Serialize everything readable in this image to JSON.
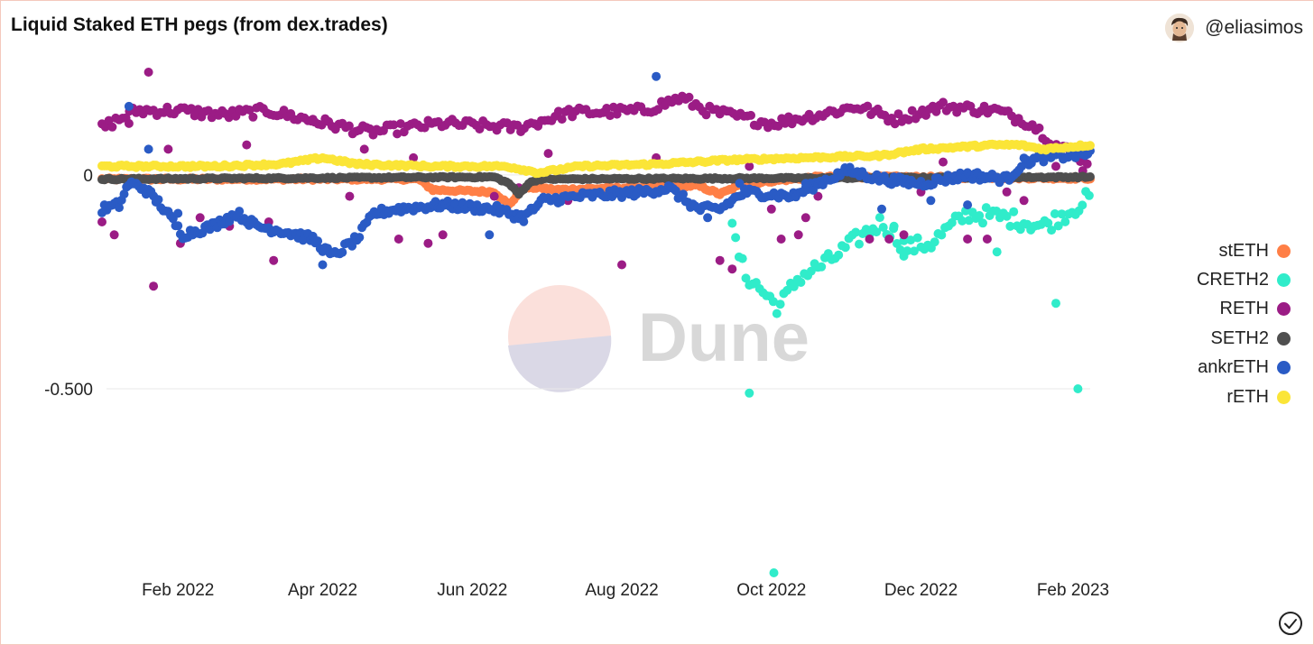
{
  "header": {
    "title": "Liquid Staked ETH pegs (from dex.trades)",
    "author": "@eliasimos"
  },
  "watermark": {
    "text": "Dune"
  },
  "chart_data": {
    "type": "scatter",
    "title": "Liquid Staked ETH pegs (from dex.trades)",
    "xlabel": "",
    "ylabel": "",
    "x_range": [
      "2022-01-01",
      "2023-02-08"
    ],
    "ylim": [
      -0.93,
      0.24
    ],
    "y_ticks": [
      {
        "value": 0,
        "label": "0"
      },
      {
        "value": -0.5,
        "label": "-0.500"
      }
    ],
    "x_ticks": [
      {
        "value": "2022-02-01",
        "label": "Feb 2022"
      },
      {
        "value": "2022-04-01",
        "label": "Apr 2022"
      },
      {
        "value": "2022-06-01",
        "label": "Jun 2022"
      },
      {
        "value": "2022-08-01",
        "label": "Aug 2022"
      },
      {
        "value": "2022-10-01",
        "label": "Oct 2022"
      },
      {
        "value": "2022-12-01",
        "label": "Dec 2022"
      },
      {
        "value": "2023-02-01",
        "label": "Feb 2023"
      }
    ],
    "grid": "horizontal",
    "legend": "right",
    "series": [
      {
        "name": "stETH",
        "color": "#ff7f46",
        "anchors": [
          [
            "2022-01-01",
            -0.01
          ],
          [
            "2022-05-10",
            -0.01
          ],
          [
            "2022-05-16",
            -0.035
          ],
          [
            "2022-06-10",
            -0.04
          ],
          [
            "2022-06-16",
            -0.07
          ],
          [
            "2022-06-22",
            -0.03
          ],
          [
            "2022-06-28",
            -0.03
          ],
          [
            "2022-07-05",
            -0.035
          ],
          [
            "2022-09-01",
            -0.025
          ],
          [
            "2022-09-10",
            -0.045
          ],
          [
            "2022-09-20",
            -0.02
          ],
          [
            "2022-10-20",
            -0.005
          ],
          [
            "2022-11-20",
            -0.005
          ],
          [
            "2023-02-08",
            -0.008
          ]
        ],
        "outliers": []
      },
      {
        "name": "CRETH2",
        "color": "#30ecca",
        "anchors": [
          [
            "2022-09-15",
            -0.13
          ],
          [
            "2022-09-20",
            -0.23
          ],
          [
            "2022-09-27",
            -0.27
          ],
          [
            "2022-10-04",
            -0.31
          ],
          [
            "2022-10-12",
            -0.24
          ],
          [
            "2022-10-25",
            -0.2
          ],
          [
            "2022-11-05",
            -0.15
          ],
          [
            "2022-11-15",
            -0.11
          ],
          [
            "2022-11-25",
            -0.17
          ],
          [
            "2022-12-05",
            -0.16
          ],
          [
            "2022-12-20",
            -0.09
          ],
          [
            "2023-01-05",
            -0.1
          ],
          [
            "2023-01-20",
            -0.12
          ],
          [
            "2023-02-01",
            -0.08
          ],
          [
            "2023-02-08",
            -0.05
          ]
        ],
        "outliers": [
          [
            "2022-09-22",
            -0.51
          ],
          [
            "2022-10-02",
            -0.93
          ],
          [
            "2023-01-25",
            -0.3
          ],
          [
            "2023-02-03",
            -0.5
          ],
          [
            "2023-01-01",
            -0.18
          ],
          [
            "2022-11-24",
            -0.19
          ],
          [
            "2022-11-20",
            -0.12
          ]
        ]
      },
      {
        "name": "RETH",
        "color": "#9b1c85",
        "anchors": [
          [
            "2022-01-01",
            0.11
          ],
          [
            "2022-01-15",
            0.15
          ],
          [
            "2022-02-01",
            0.15
          ],
          [
            "2022-02-20",
            0.14
          ],
          [
            "2022-03-10",
            0.15
          ],
          [
            "2022-03-25",
            0.13
          ],
          [
            "2022-04-20",
            0.1
          ],
          [
            "2022-05-20",
            0.12
          ],
          [
            "2022-06-20",
            0.11
          ],
          [
            "2022-07-10",
            0.145
          ],
          [
            "2022-08-10",
            0.15
          ],
          [
            "2022-08-25",
            0.18
          ],
          [
            "2022-09-05",
            0.15
          ],
          [
            "2022-10-01",
            0.12
          ],
          [
            "2022-10-20",
            0.14
          ],
          [
            "2022-11-05",
            0.16
          ],
          [
            "2022-11-20",
            0.13
          ],
          [
            "2022-12-10",
            0.16
          ],
          [
            "2023-01-01",
            0.15
          ],
          [
            "2023-01-15",
            0.12
          ],
          [
            "2023-01-25",
            0.07
          ],
          [
            "2023-02-08",
            0.03
          ]
        ],
        "outliers": [
          [
            "2022-01-01",
            -0.11
          ],
          [
            "2022-01-06",
            -0.14
          ],
          [
            "2022-01-12",
            0.12
          ],
          [
            "2022-01-20",
            0.24
          ],
          [
            "2022-01-22",
            -0.26
          ],
          [
            "2022-01-28",
            0.06
          ],
          [
            "2022-02-02",
            -0.16
          ],
          [
            "2022-02-10",
            -0.1
          ],
          [
            "2022-02-22",
            -0.12
          ],
          [
            "2022-03-01",
            0.07
          ],
          [
            "2022-03-10",
            -0.11
          ],
          [
            "2022-03-12",
            -0.2
          ],
          [
            "2022-03-28",
            0.13
          ],
          [
            "2022-04-12",
            -0.05
          ],
          [
            "2022-04-18",
            0.06
          ],
          [
            "2022-05-02",
            -0.15
          ],
          [
            "2022-05-08",
            0.04
          ],
          [
            "2022-05-14",
            -0.16
          ],
          [
            "2022-05-20",
            -0.14
          ],
          [
            "2022-06-10",
            -0.05
          ],
          [
            "2022-06-20",
            -0.03
          ],
          [
            "2022-07-02",
            0.05
          ],
          [
            "2022-07-10",
            -0.06
          ],
          [
            "2022-08-01",
            -0.21
          ],
          [
            "2022-08-15",
            0.04
          ],
          [
            "2022-08-25",
            -0.05
          ],
          [
            "2022-09-10",
            -0.2
          ],
          [
            "2022-09-15",
            -0.22
          ],
          [
            "2022-09-22",
            0.02
          ],
          [
            "2022-10-01",
            -0.08
          ],
          [
            "2022-10-05",
            -0.15
          ],
          [
            "2022-10-12",
            -0.14
          ],
          [
            "2022-10-15",
            -0.1
          ],
          [
            "2022-10-20",
            -0.05
          ],
          [
            "2022-11-01",
            0.01
          ],
          [
            "2022-11-10",
            -0.15
          ],
          [
            "2022-11-18",
            -0.15
          ],
          [
            "2022-11-24",
            -0.14
          ],
          [
            "2022-12-01",
            -0.04
          ],
          [
            "2022-12-10",
            0.03
          ],
          [
            "2022-12-20",
            -0.15
          ],
          [
            "2022-12-28",
            -0.15
          ],
          [
            "2023-01-05",
            -0.04
          ],
          [
            "2023-01-12",
            -0.06
          ],
          [
            "2023-01-25",
            0.02
          ],
          [
            "2023-02-05",
            0.01
          ]
        ]
      },
      {
        "name": "SETH2",
        "color": "#4f4f4f",
        "anchors": [
          [
            "2022-01-01",
            -0.01
          ],
          [
            "2022-06-10",
            -0.005
          ],
          [
            "2022-06-16",
            -0.02
          ],
          [
            "2022-06-20",
            -0.045
          ],
          [
            "2022-06-24",
            -0.02
          ],
          [
            "2022-06-28",
            -0.01
          ],
          [
            "2023-02-08",
            -0.005
          ]
        ],
        "outliers": []
      },
      {
        "name": "ankrETH",
        "color": "#2a5bc5",
        "anchors": [
          [
            "2022-01-01",
            -0.08
          ],
          [
            "2022-01-08",
            -0.07
          ],
          [
            "2022-01-12",
            -0.02
          ],
          [
            "2022-01-18",
            -0.03
          ],
          [
            "2022-01-25",
            -0.07
          ],
          [
            "2022-02-03",
            -0.14
          ],
          [
            "2022-02-15",
            -0.12
          ],
          [
            "2022-02-25",
            -0.09
          ],
          [
            "2022-03-05",
            -0.12
          ],
          [
            "2022-03-15",
            -0.13
          ],
          [
            "2022-03-28",
            -0.15
          ],
          [
            "2022-04-05",
            -0.19
          ],
          [
            "2022-04-15",
            -0.15
          ],
          [
            "2022-04-22",
            -0.09
          ],
          [
            "2022-05-01",
            -0.08
          ],
          [
            "2022-05-20",
            -0.07
          ],
          [
            "2022-06-10",
            -0.08
          ],
          [
            "2022-06-22",
            -0.1
          ],
          [
            "2022-06-30",
            -0.06
          ],
          [
            "2022-07-15",
            -0.05
          ],
          [
            "2022-08-10",
            -0.04
          ],
          [
            "2022-08-20",
            -0.03
          ],
          [
            "2022-09-01",
            -0.08
          ],
          [
            "2022-09-10",
            -0.08
          ],
          [
            "2022-09-20",
            -0.04
          ],
          [
            "2022-10-10",
            -0.05
          ],
          [
            "2022-10-20",
            -0.02
          ],
          [
            "2022-11-01",
            0.01
          ],
          [
            "2022-11-15",
            -0.01
          ],
          [
            "2022-12-01",
            -0.02
          ],
          [
            "2022-12-20",
            0.0
          ],
          [
            "2023-01-05",
            -0.01
          ],
          [
            "2023-01-12",
            0.03
          ],
          [
            "2023-01-20",
            0.04
          ],
          [
            "2023-02-08",
            0.05
          ]
        ],
        "outliers": [
          [
            "2022-01-12",
            0.16
          ],
          [
            "2022-01-20",
            0.06
          ],
          [
            "2022-02-01",
            -0.09
          ],
          [
            "2022-04-01",
            -0.21
          ],
          [
            "2022-06-08",
            -0.14
          ],
          [
            "2022-08-15",
            0.23
          ],
          [
            "2022-09-05",
            -0.1
          ],
          [
            "2022-09-18",
            -0.02
          ],
          [
            "2022-10-15",
            -0.02
          ],
          [
            "2022-11-15",
            -0.08
          ],
          [
            "2022-12-05",
            -0.06
          ],
          [
            "2022-12-20",
            -0.07
          ]
        ]
      },
      {
        "name": "rETH",
        "color": "#fbe537",
        "anchors": [
          [
            "2022-01-01",
            0.02
          ],
          [
            "2022-02-15",
            0.02
          ],
          [
            "2022-03-15",
            0.025
          ],
          [
            "2022-04-01",
            0.04
          ],
          [
            "2022-04-15",
            0.025
          ],
          [
            "2022-05-15",
            0.02
          ],
          [
            "2022-06-15",
            0.02
          ],
          [
            "2022-06-28",
            0.005
          ],
          [
            "2022-07-15",
            0.02
          ],
          [
            "2022-08-15",
            0.025
          ],
          [
            "2022-09-15",
            0.035
          ],
          [
            "2022-10-15",
            0.04
          ],
          [
            "2022-11-15",
            0.045
          ],
          [
            "2022-12-01",
            0.06
          ],
          [
            "2023-01-01",
            0.07
          ],
          [
            "2023-01-10",
            0.07
          ],
          [
            "2023-01-20",
            0.06
          ],
          [
            "2023-02-08",
            0.07
          ]
        ],
        "outliers": []
      }
    ]
  }
}
